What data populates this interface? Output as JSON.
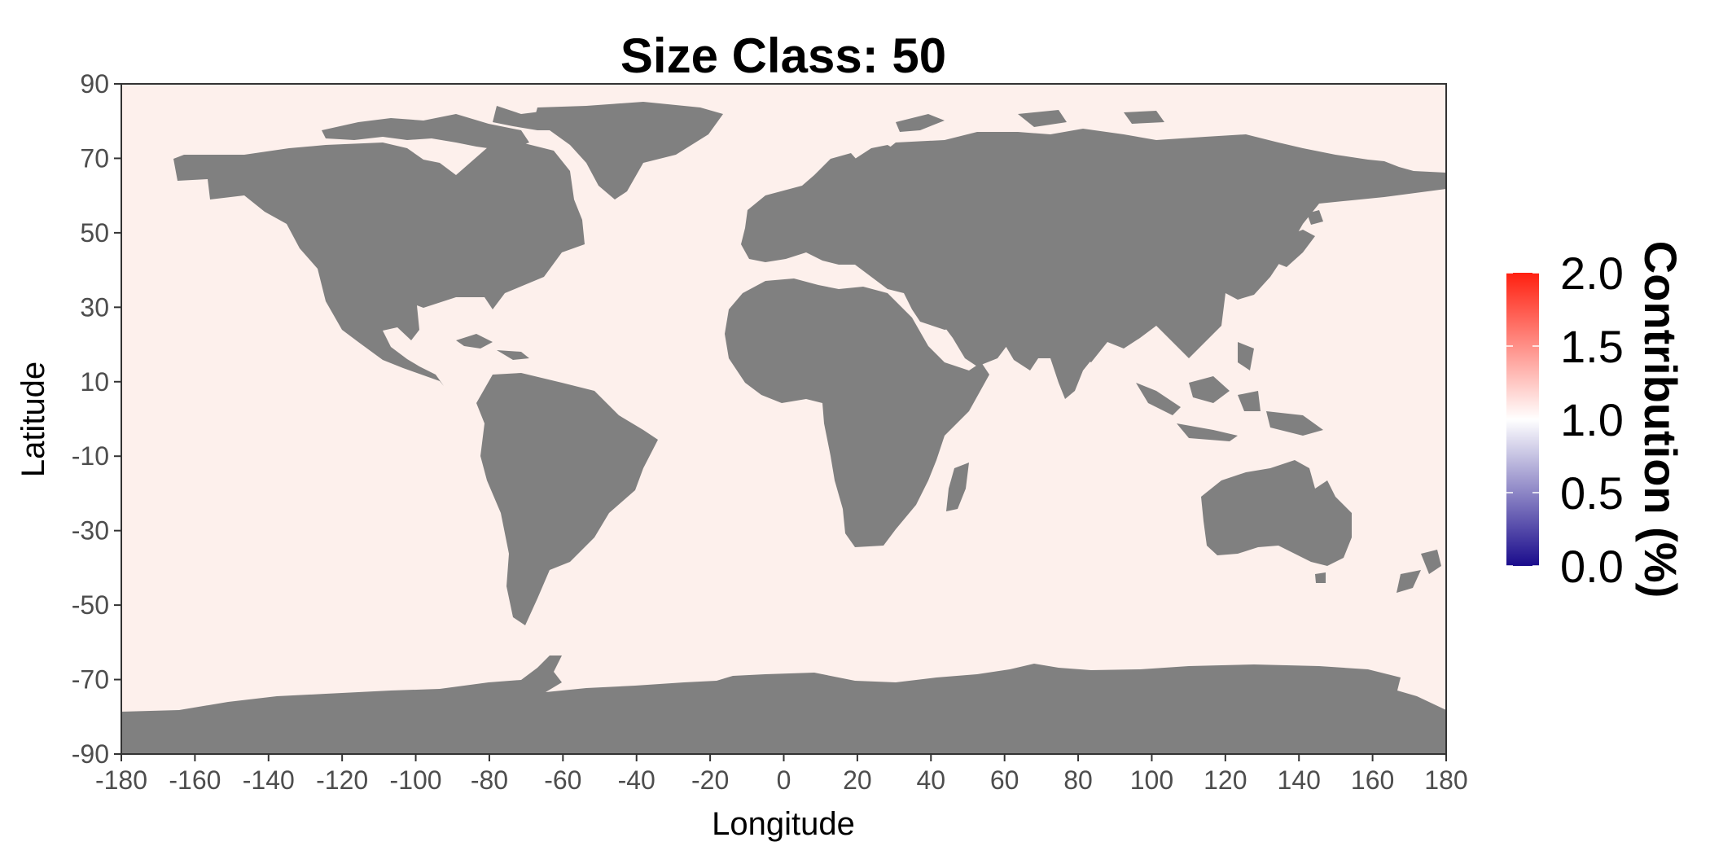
{
  "title": "Size Class: 50",
  "axes": {
    "x_label": "Longitude",
    "y_label": "Latitude",
    "x_ticks": [
      "-180",
      "-160",
      "-140",
      "-120",
      "-100",
      "-80",
      "-60",
      "-40",
      "-20",
      "0",
      "20",
      "40",
      "60",
      "80",
      "100",
      "120",
      "140",
      "160",
      "180"
    ],
    "y_ticks": [
      "90",
      "70",
      "50",
      "30",
      "10",
      "-10",
      "-30",
      "-50",
      "-70",
      "-90"
    ]
  },
  "legend": {
    "title": "Contribution (%)",
    "labels": [
      "2.0",
      "1.5",
      "1.0",
      "0.5",
      "0.0"
    ]
  },
  "colors": {
    "land": "#808080",
    "ocean": "#fdf0ec",
    "scale_low": "#1a0c8c",
    "scale_mid": "#ffffff",
    "scale_high": "#ff2010"
  },
  "chart_data": {
    "type": "heatmap",
    "title": "Size Class: 50",
    "xlabel": "Longitude",
    "ylabel": "Latitude",
    "xlim": [
      -180,
      180
    ],
    "ylim": [
      -90,
      90
    ],
    "grid": false,
    "legend_position": "right",
    "color_scale": {
      "label": "Contribution (%)",
      "min": 0.0,
      "mid": 1.0,
      "max": 2.0
    },
    "ocean_value_approx": 1.05,
    "land_mask": "grey"
  }
}
